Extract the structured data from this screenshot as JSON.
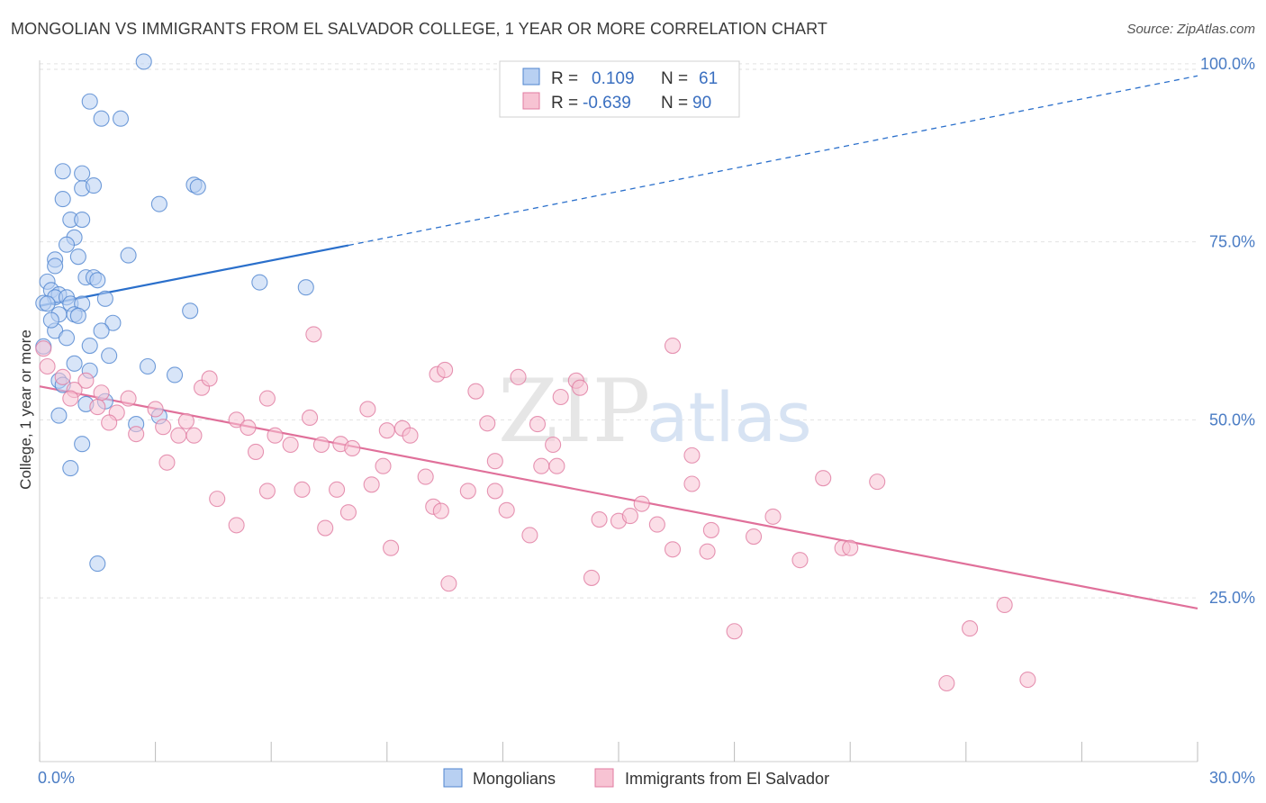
{
  "title": "MONGOLIAN VS IMMIGRANTS FROM EL SALVADOR COLLEGE, 1 YEAR OR MORE CORRELATION CHART",
  "source": "Source: ZipAtlas.com",
  "watermark": {
    "zip": "ZIP",
    "atlas": "atlas"
  },
  "colors": {
    "mongolian_fill": "#b8d0f2",
    "mongolian_stroke": "#4f84cf",
    "mongolian_line": "#2a6fcb",
    "salvador_fill": "#f7c3d3",
    "salvador_stroke": "#e07ba0",
    "salvador_line": "#e0709a",
    "tick_text": "#4a7cc4",
    "grid": "#e2e2e2"
  },
  "stats_box": {
    "rows": [
      {
        "r_label": "R =",
        "r_value": "0.109",
        "n_label": "N =",
        "n_value": "61"
      },
      {
        "r_label": "R =",
        "r_value": "-0.639",
        "n_label": "N =",
        "n_value": "90"
      }
    ]
  },
  "chart_data": {
    "type": "scatter",
    "title": "MONGOLIAN VS IMMIGRANTS FROM EL SALVADOR COLLEGE, 1 YEAR OR MORE CORRELATION CHART",
    "xlabel": "",
    "ylabel": "College, 1 year or more",
    "xlim": [
      0,
      30
    ],
    "ylim": [
      2,
      102
    ],
    "x_tick_labels": [
      {
        "value": 0,
        "label": "0.0%"
      },
      {
        "value": 30,
        "label": "30.0%"
      }
    ],
    "x_minor_ticks": [
      0,
      3,
      6,
      9,
      12,
      15,
      18,
      21,
      24,
      27,
      30
    ],
    "y_ticks": [
      {
        "value": 25,
        "label": "25.0%"
      },
      {
        "value": 50,
        "label": "50.0%"
      },
      {
        "value": 75,
        "label": "75.0%"
      },
      {
        "value": 100,
        "label": "100.0%"
      }
    ],
    "grid": true,
    "legend_position": "bottom-center",
    "series": [
      {
        "name": "Mongolians",
        "points": [
          [
            2.7,
            100.3
          ],
          [
            1.3,
            94.7
          ],
          [
            1.6,
            92.3
          ],
          [
            2.1,
            92.3
          ],
          [
            0.6,
            84.9
          ],
          [
            1.1,
            84.6
          ],
          [
            1.1,
            82.5
          ],
          [
            1.4,
            82.9
          ],
          [
            4.0,
            83.0
          ],
          [
            4.1,
            82.7
          ],
          [
            3.1,
            80.3
          ],
          [
            0.6,
            81.0
          ],
          [
            0.8,
            78.1
          ],
          [
            1.1,
            78.1
          ],
          [
            0.9,
            75.6
          ],
          [
            0.7,
            74.6
          ],
          [
            0.4,
            72.5
          ],
          [
            1.0,
            72.9
          ],
          [
            2.3,
            73.1
          ],
          [
            0.4,
            71.6
          ],
          [
            1.2,
            70.0
          ],
          [
            1.4,
            70.0
          ],
          [
            1.5,
            69.6
          ],
          [
            0.2,
            69.4
          ],
          [
            0.3,
            68.2
          ],
          [
            5.7,
            69.3
          ],
          [
            6.9,
            68.6
          ],
          [
            0.5,
            67.6
          ],
          [
            0.4,
            67.2
          ],
          [
            0.7,
            67.2
          ],
          [
            1.7,
            67.0
          ],
          [
            0.1,
            66.4
          ],
          [
            0.2,
            66.3
          ],
          [
            0.8,
            66.3
          ],
          [
            1.1,
            66.3
          ],
          [
            0.5,
            64.8
          ],
          [
            0.9,
            64.8
          ],
          [
            1.0,
            64.6
          ],
          [
            3.9,
            65.3
          ],
          [
            1.9,
            63.6
          ],
          [
            1.6,
            62.5
          ],
          [
            0.4,
            62.5
          ],
          [
            0.7,
            61.5
          ],
          [
            1.3,
            60.4
          ],
          [
            0.1,
            60.3
          ],
          [
            2.8,
            57.5
          ],
          [
            0.9,
            57.9
          ],
          [
            1.3,
            56.9
          ],
          [
            3.5,
            56.3
          ],
          [
            0.5,
            55.5
          ],
          [
            0.6,
            54.9
          ],
          [
            1.7,
            52.6
          ],
          [
            1.2,
            52.2
          ],
          [
            0.5,
            50.6
          ],
          [
            3.1,
            50.5
          ],
          [
            2.5,
            49.4
          ],
          [
            1.1,
            46.6
          ],
          [
            0.8,
            43.2
          ],
          [
            1.5,
            29.8
          ],
          [
            0.3,
            64.0
          ],
          [
            1.8,
            59.0
          ]
        ]
      },
      {
        "name": "Immigrants from El Salvador",
        "points": [
          [
            0.1,
            60.0
          ],
          [
            0.2,
            57.5
          ],
          [
            0.6,
            56.0
          ],
          [
            1.2,
            55.5
          ],
          [
            0.9,
            54.2
          ],
          [
            1.6,
            53.8
          ],
          [
            2.3,
            53.0
          ],
          [
            0.8,
            53.0
          ],
          [
            1.5,
            51.8
          ],
          [
            2.0,
            51.0
          ],
          [
            1.8,
            49.6
          ],
          [
            3.0,
            51.5
          ],
          [
            2.5,
            48.0
          ],
          [
            3.2,
            49.0
          ],
          [
            3.8,
            49.8
          ],
          [
            3.6,
            47.8
          ],
          [
            4.0,
            47.8
          ],
          [
            4.2,
            54.5
          ],
          [
            4.4,
            55.8
          ],
          [
            5.1,
            50.0
          ],
          [
            5.4,
            48.9
          ],
          [
            5.6,
            45.5
          ],
          [
            5.9,
            53.0
          ],
          [
            6.1,
            47.8
          ],
          [
            6.5,
            46.5
          ],
          [
            7.0,
            50.3
          ],
          [
            7.3,
            46.5
          ],
          [
            7.8,
            46.6
          ],
          [
            8.1,
            46.0
          ],
          [
            8.5,
            51.5
          ],
          [
            9.0,
            48.5
          ],
          [
            9.4,
            48.8
          ],
          [
            9.6,
            47.8
          ],
          [
            10.3,
            56.4
          ],
          [
            10.5,
            57.0
          ],
          [
            11.3,
            54.0
          ],
          [
            11.6,
            49.5
          ],
          [
            11.8,
            44.2
          ],
          [
            12.4,
            56.0
          ],
          [
            12.9,
            49.4
          ],
          [
            13.5,
            53.2
          ],
          [
            13.9,
            55.5
          ],
          [
            14.0,
            54.5
          ],
          [
            13.3,
            46.5
          ],
          [
            13.0,
            43.5
          ],
          [
            10.0,
            42.0
          ],
          [
            8.9,
            43.5
          ],
          [
            8.6,
            40.9
          ],
          [
            7.7,
            40.2
          ],
          [
            6.8,
            40.2
          ],
          [
            5.9,
            40.0
          ],
          [
            4.6,
            38.9
          ],
          [
            5.1,
            35.2
          ],
          [
            3.3,
            44.0
          ],
          [
            7.4,
            34.8
          ],
          [
            8.0,
            37.0
          ],
          [
            9.1,
            32.0
          ],
          [
            10.2,
            37.8
          ],
          [
            10.4,
            37.2
          ],
          [
            11.1,
            40.0
          ],
          [
            11.8,
            40.0
          ],
          [
            12.1,
            37.3
          ],
          [
            12.7,
            33.8
          ],
          [
            13.4,
            43.5
          ],
          [
            14.5,
            36.0
          ],
          [
            15.0,
            35.8
          ],
          [
            15.3,
            36.5
          ],
          [
            15.6,
            38.2
          ],
          [
            16.0,
            35.3
          ],
          [
            16.4,
            31.8
          ],
          [
            16.9,
            41.0
          ],
          [
            17.4,
            34.5
          ],
          [
            17.3,
            31.5
          ],
          [
            18.5,
            33.6
          ],
          [
            19.0,
            36.4
          ],
          [
            19.7,
            30.3
          ],
          [
            20.3,
            41.8
          ],
          [
            20.8,
            32.0
          ],
          [
            21.7,
            41.3
          ],
          [
            21.0,
            32.0
          ],
          [
            14.3,
            27.8
          ],
          [
            10.6,
            27.0
          ],
          [
            18.0,
            20.3
          ],
          [
            24.1,
            20.7
          ],
          [
            25.0,
            24.0
          ],
          [
            23.5,
            13.0
          ],
          [
            25.6,
            13.5
          ],
          [
            16.9,
            45.0
          ],
          [
            16.4,
            60.4
          ],
          [
            7.1,
            62.0
          ]
        ]
      }
    ],
    "trendlines": [
      {
        "series": "Mongolians",
        "solid": [
          [
            0,
            66.0
          ],
          [
            8.0,
            74.5
          ]
        ],
        "dashed": [
          [
            8.0,
            74.5
          ],
          [
            30,
            98.3
          ]
        ]
      },
      {
        "series": "Immigrants from El Salvador",
        "solid": [
          [
            0,
            54.7
          ],
          [
            30,
            23.5
          ]
        ]
      }
    ]
  }
}
